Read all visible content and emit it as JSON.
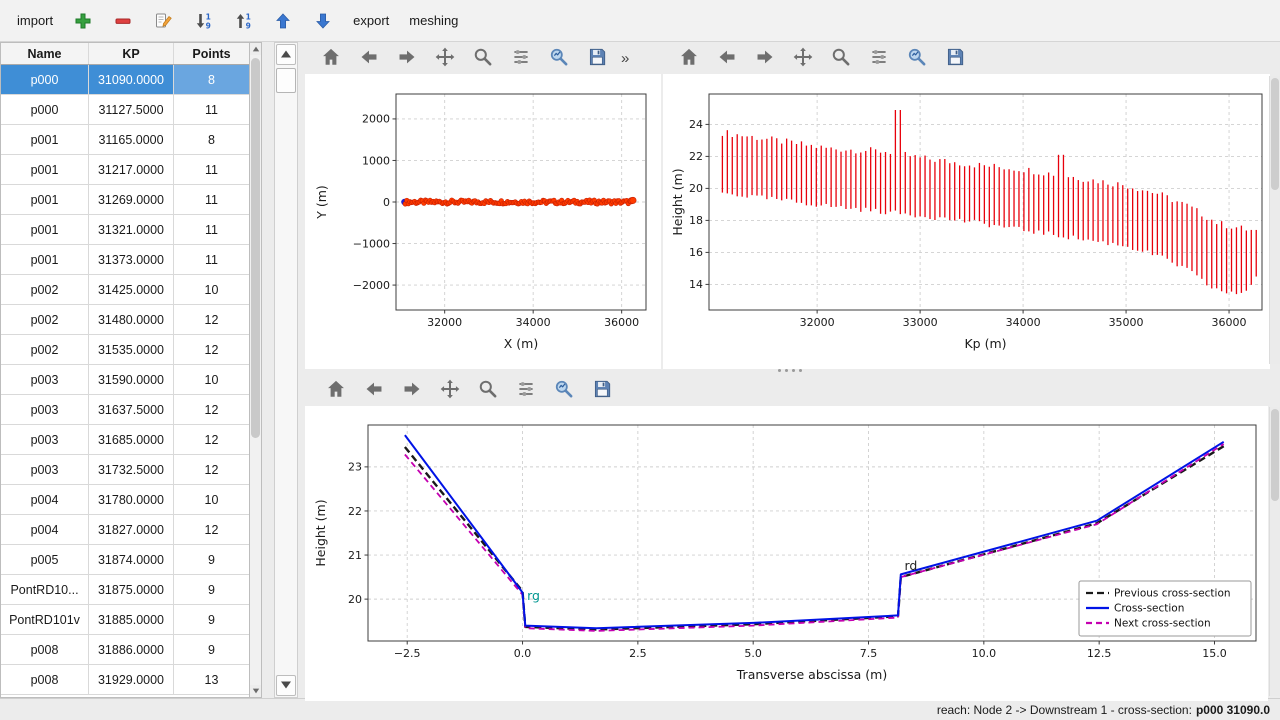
{
  "toolbar": {
    "items": [
      {
        "type": "text",
        "name": "import-button",
        "label": "import"
      },
      {
        "type": "icon",
        "name": "add-cross-section-button",
        "icon": "plus"
      },
      {
        "type": "icon",
        "name": "remove-cross-section-button",
        "icon": "minus"
      },
      {
        "type": "icon",
        "name": "edit-button",
        "icon": "edit"
      },
      {
        "type": "icon",
        "name": "sort-ascending-button",
        "icon": "sort-asc"
      },
      {
        "type": "icon",
        "name": "sort-descending-button",
        "icon": "sort-desc"
      },
      {
        "type": "icon",
        "name": "move-up-button",
        "icon": "arrow-up"
      },
      {
        "type": "icon",
        "name": "move-down-button",
        "icon": "arrow-down"
      },
      {
        "type": "text",
        "name": "export-button",
        "label": "export"
      },
      {
        "type": "text",
        "name": "meshing-button",
        "label": "meshing"
      }
    ]
  },
  "plot_toolbar": {
    "icons": [
      "home",
      "back",
      "forward",
      "pan",
      "zoom",
      "subplots",
      "customize",
      "save"
    ],
    "overflow_label": "»"
  },
  "table": {
    "headers": [
      "Name",
      "KP",
      "Points"
    ],
    "selected_row": 0,
    "rows": [
      [
        "p000",
        "31090.0000",
        "8"
      ],
      [
        "p000",
        "31127.5000",
        "11"
      ],
      [
        "p001",
        "31165.0000",
        "8"
      ],
      [
        "p001",
        "31217.0000",
        "11"
      ],
      [
        "p001",
        "31269.0000",
        "11"
      ],
      [
        "p001",
        "31321.0000",
        "11"
      ],
      [
        "p001",
        "31373.0000",
        "11"
      ],
      [
        "p002",
        "31425.0000",
        "10"
      ],
      [
        "p002",
        "31480.0000",
        "12"
      ],
      [
        "p002",
        "31535.0000",
        "12"
      ],
      [
        "p003",
        "31590.0000",
        "10"
      ],
      [
        "p003",
        "31637.5000",
        "12"
      ],
      [
        "p003",
        "31685.0000",
        "12"
      ],
      [
        "p003",
        "31732.5000",
        "12"
      ],
      [
        "p004",
        "31780.0000",
        "10"
      ],
      [
        "p004",
        "31827.0000",
        "12"
      ],
      [
        "p005",
        "31874.0000",
        "9"
      ],
      [
        "PontRD10...",
        "31875.0000",
        "9"
      ],
      [
        "PontRD101v",
        "31885.0000",
        "9"
      ],
      [
        "p008",
        "31886.0000",
        "9"
      ],
      [
        "p008",
        "31929.0000",
        "13"
      ]
    ]
  },
  "status": {
    "prefix": "reach: Node 2 -> Downstream 1 - cross-section:",
    "value": "p000 31090.0"
  },
  "chart_data": [
    {
      "type": "scatter",
      "xlabel": "X (m)",
      "ylabel": "Y (m)",
      "xlim": [
        30900,
        36550
      ],
      "ylim": [
        -2600,
        2600
      ],
      "xticks": [
        32000,
        34000,
        36000
      ],
      "xtick_labels": [
        "32000",
        "34000",
        "36000"
      ],
      "yticks": [
        -2000,
        -1000,
        0,
        1000,
        2000
      ],
      "ytick_labels": [
        "−2000",
        "−1000",
        "0",
        "1000",
        "2000"
      ],
      "grid": true,
      "series": [
        {
          "name": "selected-cross-section-marker",
          "type": "point",
          "x": 31090,
          "y": 0,
          "color": "#2222cc",
          "radius": 3.2
        },
        {
          "name": "cross-section-trace",
          "type": "band",
          "x_start": 31110,
          "x_end": 36260,
          "step": 35,
          "y": 0,
          "y_jitter": 45,
          "color": "#ff3b00",
          "edge_color": "#c81e00",
          "radius": 2.3
        }
      ]
    },
    {
      "type": "vlines",
      "xlabel": "Kp (m)",
      "ylabel": "Height (m)",
      "xlim": [
        30950,
        36320
      ],
      "ylim": [
        12.4,
        25.9
      ],
      "xticks": [
        32000,
        33000,
        34000,
        35000,
        36000
      ],
      "xtick_labels": [
        "32000",
        "33000",
        "34000",
        "35000",
        "36000"
      ],
      "yticks": [
        14,
        16,
        18,
        20,
        22,
        24
      ],
      "ytick_labels": [
        "14",
        "16",
        "18",
        "20",
        "22",
        "24"
      ],
      "grid": true,
      "series": [
        {
          "name": "cross-section-height-extents",
          "color": "#e8000b",
          "kp_start": 31080,
          "kp_end": 36270,
          "spacing": 48,
          "top_envelope": [
            [
              31080,
              23.5
            ],
            [
              31600,
              23.0
            ],
            [
              32100,
              22.5
            ],
            [
              32700,
              22.3
            ],
            [
              33000,
              21.9
            ],
            [
              33500,
              21.5
            ],
            [
              34000,
              21.2
            ],
            [
              34500,
              20.7
            ],
            [
              35000,
              20.2
            ],
            [
              35300,
              19.7
            ],
            [
              35600,
              18.9
            ],
            [
              35900,
              17.8
            ],
            [
              36270,
              17.3
            ]
          ],
          "bottom_envelope": [
            [
              31080,
              19.7
            ],
            [
              31600,
              19.3
            ],
            [
              32100,
              18.9
            ],
            [
              32700,
              18.5
            ],
            [
              33000,
              18.3
            ],
            [
              33500,
              17.9
            ],
            [
              34000,
              17.4
            ],
            [
              34500,
              16.9
            ],
            [
              35000,
              16.4
            ],
            [
              35300,
              15.8
            ],
            [
              35600,
              14.9
            ],
            [
              35800,
              13.9
            ],
            [
              36000,
              13.4
            ],
            [
              36150,
              13.5
            ],
            [
              36270,
              14.5
            ]
          ],
          "spikes": [
            {
              "kp": 32784,
              "top": 24.9
            },
            {
              "kp": 34368,
              "top": 22.1
            }
          ],
          "top_jitter": 0.22,
          "bottom_jitter": 0.16
        }
      ]
    },
    {
      "type": "line",
      "xlabel": "Transverse abscissa (m)",
      "ylabel": "Height (m)",
      "xlim": [
        -3.35,
        15.9
      ],
      "ylim": [
        19.05,
        23.95
      ],
      "xticks": [
        -2.5,
        0,
        2.5,
        5,
        7.5,
        10,
        12.5,
        15
      ],
      "xtick_labels": [
        "−2.5",
        "0.0",
        "2.5",
        "5.0",
        "7.5",
        "10.0",
        "12.5",
        "15.0"
      ],
      "yticks": [
        20,
        21,
        22,
        23
      ],
      "ytick_labels": [
        "20",
        "21",
        "22",
        "23"
      ],
      "grid": true,
      "series": [
        {
          "name": "Previous cross-section",
          "color": "#1a1a1a",
          "dash": [
            7,
            4
          ],
          "width": 2.4,
          "points": [
            [
              -2.55,
              23.45
            ],
            [
              0,
              20.18
            ],
            [
              0.06,
              19.37
            ],
            [
              1.6,
              19.31
            ],
            [
              5,
              19.43
            ],
            [
              8.14,
              19.61
            ],
            [
              8.2,
              20.5
            ],
            [
              12.45,
              21.72
            ],
            [
              15.2,
              23.47
            ]
          ]
        },
        {
          "name": "Cross-section",
          "color": "#0013e6",
          "dash": null,
          "width": 2.0,
          "points": [
            [
              -2.55,
              23.72
            ],
            [
              0,
              20.15
            ],
            [
              0.06,
              19.4
            ],
            [
              1.6,
              19.34
            ],
            [
              5,
              19.46
            ],
            [
              8.14,
              19.63
            ],
            [
              8.2,
              20.56
            ],
            [
              12.45,
              21.78
            ],
            [
              15.2,
              23.57
            ]
          ]
        },
        {
          "name": "Next cross-section",
          "color": "#c400b0",
          "dash": [
            6,
            4
          ],
          "width": 1.8,
          "points": [
            [
              -2.55,
              23.28
            ],
            [
              0,
              20.1
            ],
            [
              0.06,
              19.34
            ],
            [
              1.6,
              19.28
            ],
            [
              5,
              19.4
            ],
            [
              8.14,
              19.58
            ],
            [
              8.2,
              20.5
            ],
            [
              12.45,
              21.7
            ],
            [
              15.2,
              23.52
            ]
          ]
        }
      ],
      "annotations": [
        {
          "text": "rg",
          "x": 0.1,
          "y": 19.98,
          "color": "#009690"
        },
        {
          "text": "rd",
          "x": 8.28,
          "y": 20.66,
          "color": "#262626"
        }
      ],
      "legend": {
        "position": "lower-right",
        "entries": [
          "Previous cross-section",
          "Cross-section",
          "Next cross-section"
        ]
      }
    }
  ]
}
